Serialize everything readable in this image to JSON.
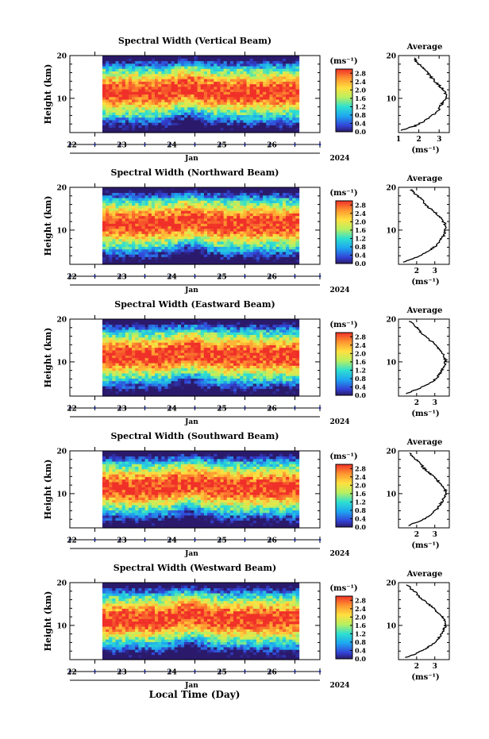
{
  "figure": {
    "xlabel": "Local Time (Day)"
  },
  "chart_data": [
    {
      "type": "heatmap",
      "title": "Spectral Width (Vertical Beam)",
      "ylabel": "Height (km)",
      "ylim": [
        2,
        20
      ],
      "yticks": [
        20,
        10
      ],
      "xlim": [
        21.5,
        26.5
      ],
      "xticks": [
        "22",
        "23",
        "24",
        "25",
        "26"
      ],
      "month": "Jan",
      "year": "2024",
      "colorbar": {
        "unit": "(ms⁻¹)",
        "ticks": [
          "2.8",
          "2.4",
          "2.0",
          "1.6",
          "1.2",
          "0.8",
          "0.4",
          "0.0"
        ],
        "range": [
          0,
          3.0
        ]
      },
      "profile": {
        "title": "Average",
        "xlabel": "(ms⁻¹)",
        "xlim": [
          1,
          3.5
        ],
        "xticks": [
          "1",
          "2",
          "3"
        ],
        "heights": [
          2.5,
          3.5,
          4.5,
          5.5,
          6.5,
          7.5,
          8.5,
          9.5,
          10.5,
          11.5,
          12.5,
          13.5,
          14.5,
          15.5,
          16.5,
          17.5,
          18.5,
          19.5
        ],
        "values": [
          1.1,
          1.8,
          2.2,
          2.5,
          2.8,
          3.0,
          3.1,
          3.25,
          3.35,
          3.3,
          3.1,
          2.9,
          2.7,
          2.5,
          2.3,
          2.1,
          1.9,
          1.8
        ]
      }
    },
    {
      "type": "heatmap",
      "title": "Spectral Width (Northward Beam)",
      "ylabel": "Height (km)",
      "ylim": [
        2,
        20
      ],
      "yticks": [
        20,
        10
      ],
      "xlim": [
        21.5,
        26.5
      ],
      "xticks": [
        "22",
        "23",
        "24",
        "25",
        "26"
      ],
      "month": "Jan",
      "year": "2024",
      "colorbar": {
        "unit": "(ms⁻¹)",
        "ticks": [
          "2.8",
          "2.4",
          "2.0",
          "1.6",
          "1.2",
          "0.8",
          "0.4",
          "0.0"
        ],
        "range": [
          0,
          3.0
        ]
      },
      "profile": {
        "title": "Average",
        "xlabel": "(ms⁻¹)",
        "xlim": [
          1,
          3.8
        ],
        "xticks": [
          "2",
          "3"
        ],
        "heights": [
          2.5,
          3.5,
          4.5,
          5.5,
          6.5,
          7.5,
          8.5,
          9.5,
          10.5,
          11.5,
          12.5,
          13.5,
          14.5,
          15.5,
          16.5,
          17.5,
          18.5,
          19.5
        ],
        "values": [
          1.3,
          1.9,
          2.4,
          2.8,
          3.1,
          3.3,
          3.45,
          3.55,
          3.6,
          3.55,
          3.4,
          3.2,
          2.9,
          2.6,
          2.4,
          2.2,
          1.9,
          1.7
        ]
      }
    },
    {
      "type": "heatmap",
      "title": "Spectral Width (Eastward Beam)",
      "ylabel": "Height (km)",
      "ylim": [
        2,
        20
      ],
      "yticks": [
        20,
        10
      ],
      "xlim": [
        21.5,
        26.5
      ],
      "xticks": [
        "22",
        "23",
        "24",
        "25",
        "26"
      ],
      "month": "Jan",
      "year": "2024",
      "colorbar": {
        "unit": "(ms⁻¹)",
        "ticks": [
          "2.8",
          "2.4",
          "2.0",
          "1.6",
          "1.2",
          "0.8",
          "0.4",
          "0.0"
        ],
        "range": [
          0,
          3.0
        ]
      },
      "profile": {
        "title": "Average",
        "xlabel": "(ms⁻¹)",
        "xlim": [
          1,
          3.8
        ],
        "xticks": [
          "2",
          "3"
        ],
        "heights": [
          2.5,
          3.5,
          4.5,
          5.5,
          6.5,
          7.5,
          8.5,
          9.5,
          10.5,
          11.5,
          12.5,
          13.5,
          14.5,
          15.5,
          16.5,
          17.5,
          18.5,
          19.5
        ],
        "values": [
          1.4,
          2.0,
          2.5,
          2.9,
          3.15,
          3.3,
          3.45,
          3.55,
          3.6,
          3.5,
          3.3,
          3.1,
          2.9,
          2.6,
          2.3,
          2.1,
          1.9,
          1.6
        ]
      }
    },
    {
      "type": "heatmap",
      "title": "Spectral Width (Southward Beam)",
      "ylabel": "Height (km)",
      "ylim": [
        2,
        20
      ],
      "yticks": [
        20,
        10
      ],
      "xlim": [
        21.5,
        26.5
      ],
      "xticks": [
        "22",
        "23",
        "24",
        "25",
        "26"
      ],
      "month": "Jan",
      "year": "2024",
      "colorbar": {
        "unit": "(ms⁻¹)",
        "ticks": [
          "2.8",
          "2.4",
          "2.0",
          "1.6",
          "1.2",
          "0.8",
          "0.4",
          "0.0"
        ],
        "range": [
          0,
          3.0
        ]
      },
      "profile": {
        "title": "Average",
        "xlabel": "(ms⁻¹)",
        "xlim": [
          1,
          3.8
        ],
        "xticks": [
          "2",
          "3"
        ],
        "heights": [
          2.5,
          3.5,
          4.5,
          5.5,
          6.5,
          7.5,
          8.5,
          9.5,
          10.5,
          11.5,
          12.5,
          13.5,
          14.5,
          15.5,
          16.5,
          17.5,
          18.5,
          19.5
        ],
        "values": [
          1.5,
          2.1,
          2.6,
          2.9,
          3.15,
          3.3,
          3.45,
          3.55,
          3.6,
          3.5,
          3.3,
          3.05,
          2.8,
          2.5,
          2.3,
          2.1,
          1.8,
          1.6
        ]
      }
    },
    {
      "type": "heatmap",
      "title": "Spectral Width (Westward Beam)",
      "ylabel": "Height (km)",
      "ylim": [
        2,
        20
      ],
      "yticks": [
        20,
        10
      ],
      "xlim": [
        21.5,
        26.5
      ],
      "xticks": [
        "22",
        "23",
        "24",
        "25",
        "26"
      ],
      "month": "Jan",
      "year": "2024",
      "colorbar": {
        "unit": "(ms⁻¹)",
        "ticks": [
          "2.8",
          "2.4",
          "2.0",
          "1.6",
          "1.2",
          "0.8",
          "0.4",
          "0.0"
        ],
        "range": [
          0,
          3.0
        ]
      },
      "profile": {
        "title": "Average",
        "xlabel": "(ms⁻¹)",
        "xlim": [
          1,
          3.8
        ],
        "xticks": [
          "2",
          "3"
        ],
        "heights": [
          2.5,
          3.5,
          4.5,
          5.5,
          6.5,
          7.5,
          8.5,
          9.5,
          10.5,
          11.5,
          12.5,
          13.5,
          14.5,
          15.5,
          16.5,
          17.5,
          18.5,
          19.5
        ],
        "values": [
          1.4,
          2.0,
          2.5,
          2.85,
          3.1,
          3.3,
          3.45,
          3.55,
          3.6,
          3.5,
          3.3,
          3.05,
          2.8,
          2.5,
          2.2,
          2.0,
          1.7,
          1.5
        ]
      }
    }
  ]
}
